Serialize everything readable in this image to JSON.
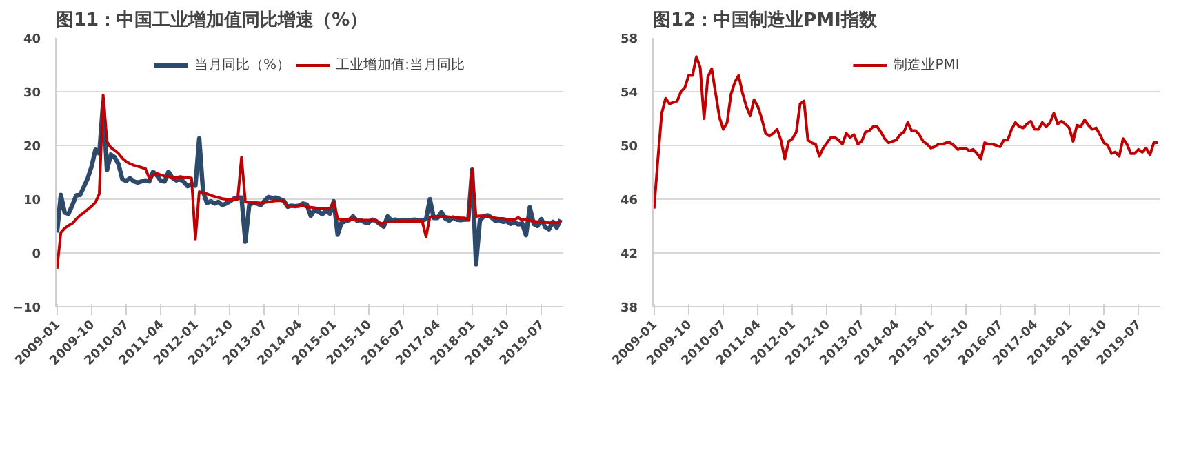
{
  "chart_data": [
    {
      "type": "line",
      "title": "图11：中国工业增加值同比增速（%）",
      "legend": "top",
      "grid": "y",
      "marker": "none",
      "line_style": "solid",
      "categories": [
        "2009-01",
        null,
        null,
        null,
        null,
        null,
        null,
        null,
        null,
        "2009-10",
        null,
        null,
        null,
        null,
        null,
        null,
        null,
        null,
        "2010-07",
        null,
        null,
        null,
        null,
        null,
        null,
        null,
        null,
        "2011-04",
        null,
        null,
        null,
        null,
        null,
        null,
        null,
        null,
        "2012-01",
        null,
        null,
        null,
        null,
        null,
        null,
        null,
        null,
        "2012-10",
        null,
        null,
        null,
        null,
        null,
        null,
        null,
        null,
        "2013-07",
        null,
        null,
        null,
        null,
        null,
        null,
        null,
        null,
        "2014-04",
        null,
        null,
        null,
        null,
        null,
        null,
        null,
        null,
        "2015-01",
        null,
        null,
        null,
        null,
        null,
        null,
        null,
        null,
        "2015-10",
        null,
        null,
        null,
        null,
        null,
        null,
        null,
        null,
        "2016-07",
        null,
        null,
        null,
        null,
        null,
        null,
        null,
        null,
        "2017-04",
        null,
        null,
        null,
        null,
        null,
        null,
        null,
        null,
        "2018-01",
        null,
        null,
        null,
        null,
        null,
        null,
        null,
        null,
        "2018-10",
        null,
        null,
        null,
        null,
        null,
        null,
        null,
        null,
        "2019-07",
        null,
        null,
        null,
        null,
        null
      ],
      "ylim": [
        -10,
        40
      ],
      "yticks": [
        -10,
        0,
        10,
        20,
        30,
        40
      ],
      "series": [
        {
          "name": "当月同比（%）",
          "color": "#2e4a6b",
          "values": [
            3.8,
            10.8,
            7.5,
            7.3,
            8.9,
            10.7,
            10.8,
            12.3,
            13.9,
            16.1,
            19.2,
            18.5,
            28,
            15.4,
            18.3,
            17.8,
            16.5,
            13.7,
            13.4,
            13.9,
            13.3,
            13.1,
            13.3,
            13.5,
            13.3,
            15.1,
            14.4,
            13.4,
            13.3,
            15.1,
            14,
            13.5,
            13.8,
            13.2,
            12.4,
            12.8,
            12.5,
            21.3,
            11.4,
            9.3,
            9.6,
            9.2,
            9.5,
            8.9,
            9.2,
            9.6,
            10.1,
            10.3,
            10.3,
            2.1,
            8.9,
            9.3,
            9.2,
            8.9,
            9.7,
            10.4,
            10.2,
            10.3,
            10,
            9.7,
            8.6,
            8.8,
            8.7,
            8.8,
            9.2,
            9,
            6.9,
            8,
            7.7,
            7.2,
            7.9,
            7.3,
            9.6,
            3.4,
            5.6,
            5.9,
            6.1,
            6.8,
            6,
            6.1,
            5.7,
            5.6,
            6.2,
            5.9,
            5.4,
            4.9,
            6.8,
            6,
            6.2,
            6,
            6,
            6.1,
            6.1,
            6.2,
            6,
            6,
            6.3,
            10,
            6.5,
            6.5,
            7.6,
            6.4,
            6,
            6.6,
            6.2,
            6.1,
            6.2,
            6.2,
            15.5,
            -2.1,
            6,
            6.8,
            7,
            6.6,
            6,
            6.1,
            5.8,
            5.9,
            5.4,
            5.7,
            5.3,
            5.5,
            3.3,
            8.5,
            5.4,
            5,
            6.3,
            4.8,
            4.4,
            5.8,
            4.7,
            6.2
          ]
        },
        {
          "name": "工业增加值:当月同比",
          "color": "#c00000",
          "values": [
            -3,
            3.8,
            4.6,
            5.1,
            5.5,
            6.3,
            7,
            7.5,
            8.1,
            8.7,
            9.4,
            11,
            29.4,
            20.7,
            19.6,
            19.1,
            18.5,
            17.6,
            17,
            16.6,
            16.3,
            16.1,
            15.9,
            15.7,
            13.9,
            14.4,
            14.8,
            14.5,
            14.3,
            14.2,
            14.1,
            14,
            14.2,
            14.1,
            14,
            13.9,
            2.6,
            11.4,
            11.2,
            11,
            10.7,
            10.5,
            10.3,
            10.1,
            10,
            10,
            10,
            10,
            17.8,
            9.5,
            9.4,
            9.3,
            9.3,
            9.3,
            9.4,
            9.5,
            9.6,
            9.7,
            9.7,
            9.7,
            8.6,
            8.7,
            8.7,
            8.8,
            8.8,
            8.5,
            8.5,
            8.4,
            8.3,
            8.3,
            8.3,
            8.3,
            9.5,
            6.4,
            6.2,
            6.2,
            6.2,
            6.2,
            6.1,
            6.1,
            6.1,
            6.1,
            6.1,
            6.1,
            5.4,
            5.6,
            5.8,
            5.8,
            5.8,
            5.9,
            5.9,
            5.9,
            5.9,
            5.9,
            5.9,
            5.9,
            3,
            6.7,
            6.8,
            6.8,
            6.8,
            6.8,
            6.7,
            6.6,
            6.6,
            6.5,
            6.5,
            6.2,
            15.6,
            6.8,
            6.9,
            6.9,
            6.8,
            6.7,
            6.5,
            6.4,
            6.4,
            6.3,
            6.2,
            6.2,
            6.6,
            6.1,
            6.3,
            6,
            5.9,
            5.8,
            5.8,
            5.7,
            5.6,
            5.6,
            5.6,
            5.7
          ]
        }
      ]
    },
    {
      "type": "line",
      "title": "图12：中国制造业PMI指数",
      "legend": "top",
      "grid": "y",
      "marker": "none",
      "line_style": "solid",
      "categories": [
        "2009-01",
        null,
        null,
        null,
        null,
        null,
        null,
        null,
        null,
        "2009-10",
        null,
        null,
        null,
        null,
        null,
        null,
        null,
        null,
        "2010-07",
        null,
        null,
        null,
        null,
        null,
        null,
        null,
        null,
        "2011-04",
        null,
        null,
        null,
        null,
        null,
        null,
        null,
        null,
        "2012-01",
        null,
        null,
        null,
        null,
        null,
        null,
        null,
        null,
        "2012-10",
        null,
        null,
        null,
        null,
        null,
        null,
        null,
        null,
        "2013-07",
        null,
        null,
        null,
        null,
        null,
        null,
        null,
        null,
        "2014-04",
        null,
        null,
        null,
        null,
        null,
        null,
        null,
        null,
        "2015-01",
        null,
        null,
        null,
        null,
        null,
        null,
        null,
        null,
        "2015-10",
        null,
        null,
        null,
        null,
        null,
        null,
        null,
        null,
        "2016-07",
        null,
        null,
        null,
        null,
        null,
        null,
        null,
        null,
        "2017-04",
        null,
        null,
        null,
        null,
        null,
        null,
        null,
        null,
        "2018-01",
        null,
        null,
        null,
        null,
        null,
        null,
        null,
        null,
        "2018-10",
        null,
        null,
        null,
        null,
        null,
        null,
        null,
        null,
        "2019-07",
        null,
        null,
        null,
        null,
        null
      ],
      "ylim": [
        38,
        58
      ],
      "yticks": [
        38,
        42,
        46,
        50,
        54,
        58
      ],
      "series": [
        {
          "name": "制造业PMI",
          "color": "#c00000",
          "values": [
            45.3,
            49,
            52.4,
            53.5,
            53.1,
            53.2,
            53.3,
            54,
            54.3,
            55.2,
            55.2,
            56.6,
            55.8,
            52,
            55.1,
            55.7,
            53.9,
            52.1,
            51.2,
            51.7,
            53.8,
            54.7,
            55.2,
            53.9,
            52.9,
            52.2,
            53.4,
            52.9,
            52,
            50.9,
            50.7,
            50.9,
            51.2,
            50.4,
            49,
            50.3,
            50.5,
            51,
            53.1,
            53.3,
            50.4,
            50.2,
            50.1,
            49.2,
            49.8,
            50.2,
            50.6,
            50.6,
            50.4,
            50.1,
            50.9,
            50.6,
            50.8,
            50.1,
            50.3,
            51,
            51.1,
            51.4,
            51.4,
            51,
            50.5,
            50.2,
            50.3,
            50.4,
            50.8,
            51,
            51.7,
            51.1,
            51.1,
            50.8,
            50.3,
            50.1,
            49.8,
            49.9,
            50.1,
            50.1,
            50.2,
            50.2,
            50,
            49.7,
            49.8,
            49.8,
            49.6,
            49.7,
            49.4,
            49,
            50.2,
            50.1,
            50.1,
            50,
            49.9,
            50.4,
            50.4,
            51.2,
            51.7,
            51.4,
            51.3,
            51.6,
            51.8,
            51.2,
            51.2,
            51.7,
            51.4,
            51.7,
            52.4,
            51.6,
            51.8,
            51.6,
            51.3,
            50.3,
            51.5,
            51.4,
            51.9,
            51.5,
            51.2,
            51.3,
            50.8,
            50.2,
            50,
            49.4,
            49.5,
            49.2,
            50.5,
            50.1,
            49.4,
            49.4,
            49.7,
            49.5,
            49.8,
            49.3,
            50.2,
            50.2
          ]
        }
      ]
    }
  ]
}
